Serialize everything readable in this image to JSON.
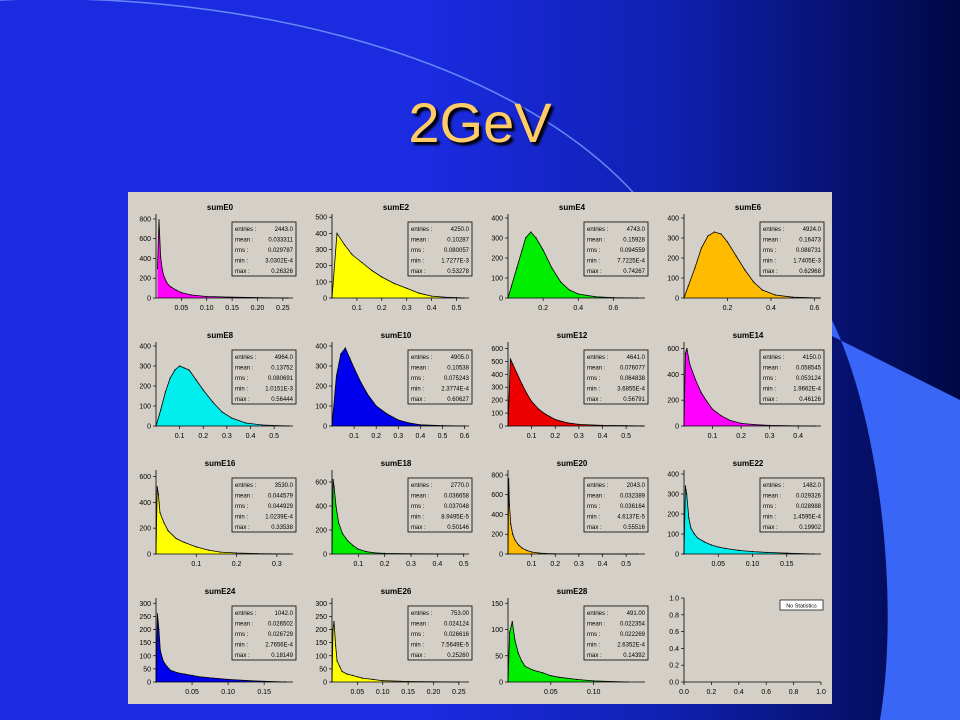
{
  "slide": {
    "title": "2GeV"
  },
  "colors": {
    "title": "#ffcc66",
    "panel_bg": "#d4d0c8"
  },
  "stat_labels": [
    "entries :",
    "mean :",
    "rms :",
    "min :",
    "max :"
  ],
  "no_stats_label": "No Statistics",
  "chart_data": [
    {
      "type": "histogram",
      "title": "sumE0",
      "color": "#ff00ff",
      "xlim": [
        0,
        0.27
      ],
      "xticks": [
        "0.05",
        "0.10",
        "0.15",
        "0.20",
        "0.25"
      ],
      "xtick_vals": [
        0.05,
        0.1,
        0.15,
        0.2,
        0.25
      ],
      "ylim": [
        0,
        850
      ],
      "yticks": [
        "0",
        "200",
        "400",
        "600",
        "800"
      ],
      "ytick_vals": [
        0,
        200,
        400,
        600,
        800
      ],
      "stats": [
        "2443.0",
        "0.033311",
        "0.029787",
        "3.0302E-4",
        "0.26326"
      ],
      "x": [
        0.003,
        0.006,
        0.009,
        0.012,
        0.015,
        0.02,
        0.025,
        0.03,
        0.04,
        0.05,
        0.07,
        0.1,
        0.15,
        0.2,
        0.26
      ],
      "values": [
        300,
        790,
        420,
        300,
        230,
        170,
        130,
        110,
        80,
        55,
        30,
        15,
        8,
        4,
        0
      ]
    },
    {
      "type": "histogram",
      "title": "sumE2",
      "color": "#ffff00",
      "xlim": [
        0,
        0.55
      ],
      "xticks": [
        "0.1",
        "0.2",
        "0.3",
        "0.4",
        "0.5"
      ],
      "xtick_vals": [
        0.1,
        0.2,
        0.3,
        0.4,
        0.5
      ],
      "ylim": [
        0,
        520
      ],
      "yticks": [
        "0",
        "100",
        "200",
        "300",
        "400",
        "500"
      ],
      "ytick_vals": [
        0,
        100,
        200,
        300,
        400,
        500
      ],
      "stats": [
        "4250.0",
        "0.10287",
        "0.080057",
        "1.7277E-3",
        "0.53278"
      ],
      "x": [
        0.0,
        0.02,
        0.05,
        0.08,
        0.12,
        0.16,
        0.2,
        0.25,
        0.3,
        0.35,
        0.4,
        0.45,
        0.5,
        0.53
      ],
      "values": [
        0,
        400,
        330,
        270,
        220,
        170,
        130,
        90,
        60,
        30,
        12,
        5,
        2,
        0
      ]
    },
    {
      "type": "histogram",
      "title": "sumE4",
      "color": "#00ee00",
      "xlim": [
        0,
        0.78
      ],
      "xticks": [
        "0.2",
        "0.4",
        "0.6"
      ],
      "xtick_vals": [
        0.2,
        0.4,
        0.6
      ],
      "ylim": [
        0,
        420
      ],
      "yticks": [
        "0",
        "100",
        "200",
        "300",
        "400"
      ],
      "ytick_vals": [
        0,
        100,
        200,
        300,
        400
      ],
      "stats": [
        "4743.0",
        "0.15928",
        "0.094559",
        "7.7225E-4",
        "0.74267"
      ],
      "x": [
        0.0,
        0.02,
        0.05,
        0.08,
        0.1,
        0.13,
        0.16,
        0.2,
        0.25,
        0.3,
        0.35,
        0.4,
        0.5,
        0.6,
        0.74
      ],
      "values": [
        0,
        60,
        150,
        240,
        300,
        330,
        300,
        240,
        150,
        80,
        40,
        20,
        6,
        2,
        0
      ]
    },
    {
      "type": "histogram",
      "title": "sumE6",
      "color": "#ffbb00",
      "xlim": [
        0,
        0.63
      ],
      "xticks": [
        "0.2",
        "0.4",
        "0.6"
      ],
      "xtick_vals": [
        0.2,
        0.4,
        0.6
      ],
      "ylim": [
        0,
        420
      ],
      "yticks": [
        "0",
        "100",
        "200",
        "300",
        "400"
      ],
      "ytick_vals": [
        0,
        100,
        200,
        300,
        400
      ],
      "stats": [
        "4924.0",
        "0.16473",
        "0.088731",
        "1.7405E-3",
        "0.62968"
      ],
      "x": [
        0.0,
        0.02,
        0.05,
        0.08,
        0.11,
        0.14,
        0.17,
        0.2,
        0.24,
        0.28,
        0.32,
        0.36,
        0.42,
        0.5,
        0.62
      ],
      "values": [
        0,
        60,
        150,
        250,
        310,
        330,
        320,
        280,
        210,
        140,
        80,
        40,
        15,
        4,
        0
      ]
    },
    {
      "type": "histogram",
      "title": "sumE8",
      "color": "#00eeee",
      "xlim": [
        0,
        0.58
      ],
      "xticks": [
        "0.1",
        "0.2",
        "0.3",
        "0.4",
        "0.5"
      ],
      "xtick_vals": [
        0.1,
        0.2,
        0.3,
        0.4,
        0.5
      ],
      "ylim": [
        0,
        420
      ],
      "yticks": [
        "0",
        "100",
        "200",
        "300",
        "400"
      ],
      "ytick_vals": [
        0,
        100,
        200,
        300,
        400
      ],
      "stats": [
        "4964.0",
        "0.13752",
        "0.080691",
        "1.0151E-3",
        "0.56444"
      ],
      "x": [
        0.0,
        0.02,
        0.04,
        0.06,
        0.08,
        0.1,
        0.12,
        0.14,
        0.17,
        0.2,
        0.24,
        0.28,
        0.32,
        0.38,
        0.45,
        0.56
      ],
      "values": [
        0,
        80,
        170,
        240,
        280,
        300,
        290,
        280,
        230,
        180,
        120,
        70,
        40,
        15,
        5,
        0
      ]
    },
    {
      "type": "histogram",
      "title": "sumE10",
      "color": "#0000ee",
      "xlim": [
        0,
        0.62
      ],
      "xticks": [
        "0.1",
        "0.2",
        "0.3",
        "0.4",
        "0.5",
        "0.6"
      ],
      "xtick_vals": [
        0.1,
        0.2,
        0.3,
        0.4,
        0.5,
        0.6
      ],
      "ylim": [
        0,
        420
      ],
      "yticks": [
        "0",
        "100",
        "200",
        "300",
        "400"
      ],
      "ytick_vals": [
        0,
        100,
        200,
        300,
        400
      ],
      "stats": [
        "4905.0",
        "0.10538",
        "0.075243",
        "2.3774E-4",
        "0.60627"
      ],
      "x": [
        0.0,
        0.02,
        0.04,
        0.06,
        0.08,
        0.1,
        0.13,
        0.16,
        0.2,
        0.25,
        0.3,
        0.35,
        0.4,
        0.5,
        0.6
      ],
      "values": [
        0,
        250,
        360,
        390,
        340,
        290,
        220,
        160,
        100,
        60,
        30,
        15,
        6,
        2,
        0
      ]
    },
    {
      "type": "histogram",
      "title": "sumE12",
      "color": "#ee0000",
      "xlim": [
        0,
        0.58
      ],
      "xticks": [
        "0.1",
        "0.2",
        "0.3",
        "0.4",
        "0.5"
      ],
      "xtick_vals": [
        0.1,
        0.2,
        0.3,
        0.4,
        0.5
      ],
      "ylim": [
        0,
        650
      ],
      "yticks": [
        "0",
        "100",
        "200",
        "300",
        "400",
        "500",
        "600"
      ],
      "ytick_vals": [
        0,
        100,
        200,
        300,
        400,
        500,
        600
      ],
      "stats": [
        "4641.0",
        "0.076077",
        "0.064838",
        "3.6855E-4",
        "0.56791"
      ],
      "x": [
        0.0,
        0.01,
        0.02,
        0.04,
        0.06,
        0.08,
        0.1,
        0.13,
        0.16,
        0.2,
        0.25,
        0.3,
        0.4,
        0.5,
        0.57
      ],
      "values": [
        0,
        520,
        480,
        400,
        320,
        250,
        190,
        130,
        90,
        50,
        25,
        12,
        5,
        2,
        0
      ]
    },
    {
      "type": "histogram",
      "title": "sumE14",
      "color": "#ff00ff",
      "xlim": [
        0,
        0.48
      ],
      "xticks": [
        "0.1",
        "0.2",
        "0.3",
        "0.4"
      ],
      "xtick_vals": [
        0.1,
        0.2,
        0.3,
        0.4
      ],
      "ylim": [
        0,
        650
      ],
      "yticks": [
        "0",
        "200",
        "400",
        "600"
      ],
      "ytick_vals": [
        0,
        200,
        400,
        600
      ],
      "stats": [
        "4150.0",
        "0.058545",
        "0.053124",
        "1.9662E-4",
        "0.46126"
      ],
      "x": [
        0.0,
        0.005,
        0.01,
        0.02,
        0.04,
        0.06,
        0.08,
        0.1,
        0.13,
        0.16,
        0.2,
        0.25,
        0.3,
        0.4,
        0.46
      ],
      "values": [
        0,
        560,
        600,
        480,
        360,
        260,
        190,
        130,
        80,
        45,
        20,
        10,
        5,
        1,
        0
      ]
    },
    {
      "type": "histogram",
      "title": "sumE16",
      "color": "#ffff00",
      "xlim": [
        0,
        0.34
      ],
      "xticks": [
        "0.1",
        "0.2",
        "0.3"
      ],
      "xtick_vals": [
        0.1,
        0.2,
        0.3
      ],
      "ylim": [
        0,
        650
      ],
      "yticks": [
        "0",
        "200",
        "400",
        "600"
      ],
      "ytick_vals": [
        0,
        200,
        400,
        600
      ],
      "stats": [
        "3530.0",
        "0.044579",
        "0.044929",
        "1.0239E-4",
        "0.33538"
      ],
      "x": [
        0.0,
        0.003,
        0.006,
        0.01,
        0.02,
        0.03,
        0.05,
        0.07,
        0.1,
        0.13,
        0.16,
        0.2,
        0.25,
        0.33
      ],
      "values": [
        0,
        520,
        460,
        320,
        240,
        180,
        120,
        90,
        55,
        30,
        15,
        8,
        3,
        0
      ]
    },
    {
      "type": "histogram",
      "title": "sumE18",
      "color": "#00ee00",
      "xlim": [
        0,
        0.52
      ],
      "xticks": [
        "0.1",
        "0.2",
        "0.3",
        "0.4",
        "0.5"
      ],
      "xtick_vals": [
        0.1,
        0.2,
        0.3,
        0.4,
        0.5
      ],
      "ylim": [
        0,
        700
      ],
      "yticks": [
        "0",
        "200",
        "400",
        "600"
      ],
      "ytick_vals": [
        0,
        200,
        400,
        600
      ],
      "stats": [
        "2770.0",
        "0.036658",
        "0.037048",
        "8.9495E-5",
        "0.50146"
      ],
      "x": [
        0.0,
        0.004,
        0.008,
        0.015,
        0.025,
        0.04,
        0.06,
        0.08,
        0.1,
        0.13,
        0.16,
        0.2,
        0.3,
        0.5
      ],
      "values": [
        0,
        620,
        560,
        400,
        260,
        170,
        110,
        70,
        40,
        20,
        10,
        5,
        2,
        0
      ]
    },
    {
      "type": "histogram",
      "title": "sumE20",
      "color": "#ffbb00",
      "xlim": [
        0,
        0.58
      ],
      "xticks": [
        "0.1",
        "0.2",
        "0.3",
        "0.4",
        "0.5"
      ],
      "xtick_vals": [
        0.1,
        0.2,
        0.3,
        0.4,
        0.5
      ],
      "ylim": [
        0,
        850
      ],
      "yticks": [
        "0",
        "200",
        "400",
        "600",
        "800"
      ],
      "ytick_vals": [
        0,
        200,
        400,
        600,
        800
      ],
      "stats": [
        "2043.0",
        "0.032389",
        "0.036164",
        "4.6137E-5",
        "0.55516"
      ],
      "x": [
        0.0,
        0.003,
        0.006,
        0.012,
        0.02,
        0.03,
        0.045,
        0.06,
        0.08,
        0.1,
        0.13,
        0.16,
        0.2,
        0.3,
        0.55
      ],
      "values": [
        0,
        760,
        500,
        300,
        200,
        140,
        90,
        60,
        35,
        20,
        10,
        5,
        2,
        1,
        0
      ]
    },
    {
      "type": "histogram",
      "title": "sumE22",
      "color": "#00eeee",
      "xlim": [
        0,
        0.2
      ],
      "xticks": [
        "0.05",
        "0.10",
        "0.15"
      ],
      "xtick_vals": [
        0.05,
        0.1,
        0.15
      ],
      "ylim": [
        0,
        420
      ],
      "yticks": [
        "0",
        "100",
        "200",
        "300",
        "400"
      ],
      "ytick_vals": [
        0,
        100,
        200,
        300,
        400
      ],
      "stats": [
        "1482.0",
        "0.029326",
        "0.028988",
        "1.4595E-4",
        "0.19902"
      ],
      "x": [
        0.0,
        0.002,
        0.004,
        0.007,
        0.01,
        0.015,
        0.02,
        0.03,
        0.04,
        0.05,
        0.06,
        0.08,
        0.1,
        0.12,
        0.15,
        0.19
      ],
      "values": [
        0,
        340,
        300,
        180,
        130,
        100,
        80,
        60,
        45,
        35,
        28,
        18,
        12,
        8,
        4,
        0
      ]
    },
    {
      "type": "histogram",
      "title": "sumE24",
      "color": "#0000ee",
      "xlim": [
        0,
        0.19
      ],
      "xticks": [
        "0.05",
        "0.10",
        "0.15"
      ],
      "xtick_vals": [
        0.05,
        0.1,
        0.15
      ],
      "ylim": [
        0,
        320
      ],
      "yticks": [
        "0",
        "50",
        "100",
        "150",
        "200",
        "250",
        "300"
      ],
      "ytick_vals": [
        0,
        50,
        100,
        150,
        200,
        250,
        300
      ],
      "stats": [
        "1042.0",
        "0.026502",
        "0.026729",
        "2.7656E-4",
        "0.18149"
      ],
      "x": [
        0.0,
        0.002,
        0.004,
        0.006,
        0.01,
        0.015,
        0.02,
        0.03,
        0.04,
        0.05,
        0.06,
        0.08,
        0.1,
        0.13,
        0.18
      ],
      "values": [
        0,
        260,
        200,
        120,
        80,
        60,
        45,
        35,
        30,
        25,
        20,
        15,
        10,
        5,
        0
      ]
    },
    {
      "type": "histogram",
      "title": "sumE26",
      "color": "#ffff00",
      "xlim": [
        0,
        0.27
      ],
      "xticks": [
        "0.05",
        "0.10",
        "0.15",
        "0.20",
        "0.25"
      ],
      "xtick_vals": [
        0.05,
        0.1,
        0.15,
        0.2,
        0.25
      ],
      "ylim": [
        0,
        320
      ],
      "yticks": [
        "0",
        "50",
        "100",
        "150",
        "200",
        "250",
        "300"
      ],
      "ytick_vals": [
        0,
        50,
        100,
        150,
        200,
        250,
        300
      ],
      "stats": [
        "753.00",
        "0.024124",
        "0.026616",
        "7.5649E-5",
        "0.25260"
      ],
      "x": [
        0.0,
        0.002,
        0.004,
        0.007,
        0.01,
        0.015,
        0.02,
        0.03,
        0.04,
        0.05,
        0.06,
        0.08,
        0.1,
        0.15,
        0.25
      ],
      "values": [
        0,
        200,
        230,
        140,
        80,
        60,
        40,
        30,
        25,
        20,
        15,
        10,
        5,
        2,
        0
      ]
    },
    {
      "type": "histogram",
      "title": "sumE28",
      "color": "#00ee00",
      "xlim": [
        0,
        0.16
      ],
      "xticks": [
        "0.05",
        "0.10"
      ],
      "xtick_vals": [
        0.05,
        0.1
      ],
      "ylim": [
        0,
        160
      ],
      "yticks": [
        "0",
        "50",
        "100",
        "150"
      ],
      "ytick_vals": [
        0,
        50,
        100,
        150
      ],
      "stats": [
        "491.00",
        "0.022354",
        "0.022269",
        "2.6352E-4",
        "0.14392"
      ],
      "x": [
        0.0,
        0.002,
        0.005,
        0.008,
        0.012,
        0.016,
        0.02,
        0.03,
        0.04,
        0.05,
        0.06,
        0.08,
        0.1,
        0.14
      ],
      "values": [
        0,
        95,
        115,
        80,
        55,
        40,
        30,
        22,
        18,
        12,
        9,
        5,
        2,
        0
      ]
    },
    {
      "type": "empty",
      "title": "",
      "xlim": [
        0,
        1
      ],
      "xticks": [
        "0.0",
        "0.2",
        "0.4",
        "0.6",
        "0.8",
        "1.0"
      ],
      "xtick_vals": [
        0,
        0.2,
        0.4,
        0.6,
        0.8,
        1.0
      ],
      "ylim": [
        0,
        1
      ],
      "yticks": [
        "0.0",
        "0.2",
        "0.4",
        "0.6",
        "0.8",
        "1.0"
      ],
      "ytick_vals": [
        0,
        0.2,
        0.4,
        0.6,
        0.8,
        1.0
      ]
    }
  ]
}
